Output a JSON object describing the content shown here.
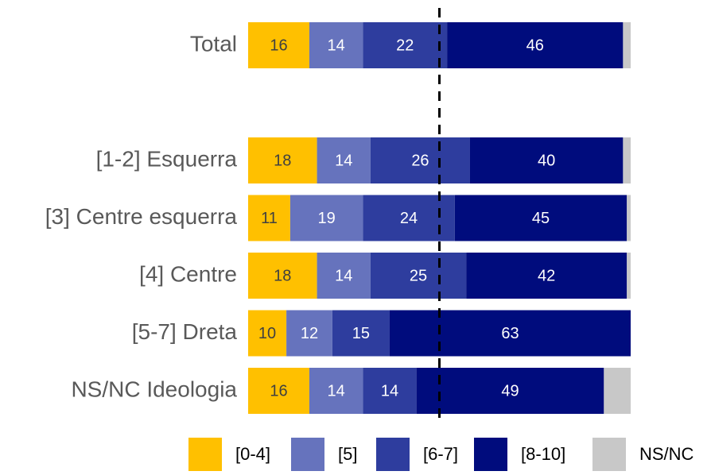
{
  "chart_data": {
    "type": "stacked_bar_horizontal",
    "categories": [
      "Total",
      null,
      "[1-2] Esquerra",
      "[3] Centre esquerra",
      "[4] Centre",
      "[5-7] Dreta",
      "NS/NC Ideologia"
    ],
    "series": [
      {
        "name": "[0-4]",
        "color": "#FFC000",
        "label_color": "#404040",
        "values": [
          16,
          null,
          18,
          11,
          18,
          10,
          16
        ]
      },
      {
        "name": "[5]",
        "color": "#6673BD",
        "label_color": "#ffffff",
        "values": [
          14,
          null,
          14,
          19,
          14,
          12,
          14
        ]
      },
      {
        "name": "[6-7]",
        "color": "#2E3D9E",
        "label_color": "#ffffff",
        "values": [
          22,
          null,
          26,
          24,
          25,
          15,
          14
        ]
      },
      {
        "name": "[8-10]",
        "color": "#000C7D",
        "label_color": "#ffffff",
        "values": [
          46,
          null,
          40,
          45,
          42,
          63,
          49
        ]
      },
      {
        "name": "NS/NC",
        "color": "#C8C8C8",
        "label_color": null,
        "values": [
          2,
          null,
          2,
          1,
          1,
          0,
          7
        ]
      }
    ],
    "xlim": [
      0,
      100
    ],
    "reference_line": 50,
    "legend": "bottom"
  }
}
